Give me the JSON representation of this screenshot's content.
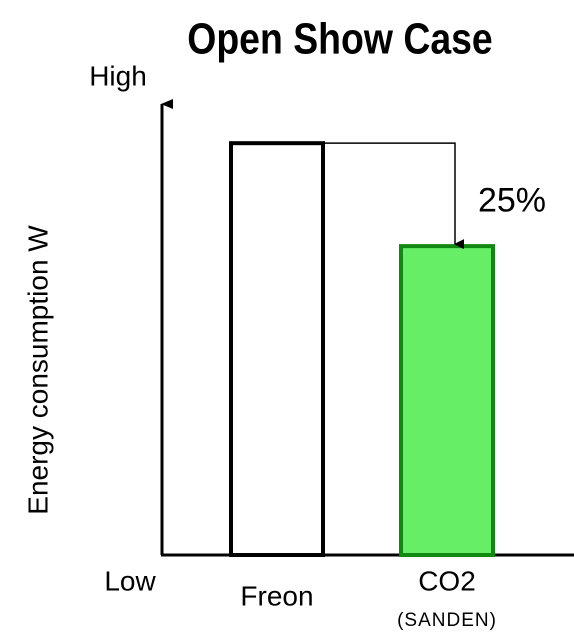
{
  "chart_data": {
    "type": "bar",
    "title": "Open Show Case",
    "y_label": "Energy consumption W",
    "y_high_label": "High",
    "y_low_label": "Low",
    "categories": [
      "Freon",
      "CO2"
    ],
    "category_notes": [
      null,
      "(SANDEN)"
    ],
    "values": [
      100,
      75
    ],
    "colors": [
      "#ffffff",
      "#66ee66"
    ],
    "edge_colors": [
      "#000000",
      "#118811"
    ],
    "ylim": [
      0,
      110
    ],
    "annotation": "25%"
  }
}
